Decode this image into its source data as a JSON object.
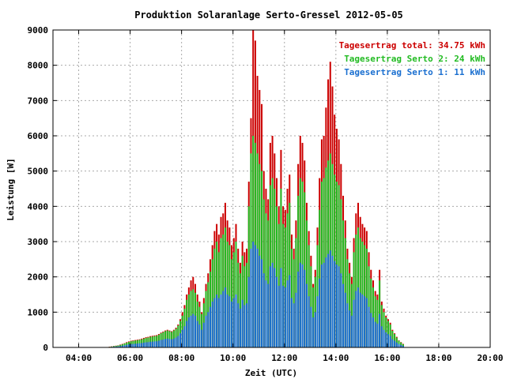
{
  "chart_data": {
    "type": "bar",
    "title": "Produktion Solaranlage Serto-Gressel 2012-05-05",
    "xlabel": "Zeit (UTC)",
    "ylabel": "Leistung [W]",
    "xlim_hours": [
      3,
      20
    ],
    "ylim": [
      0,
      9000
    ],
    "grid": true,
    "legend_position": "top-right",
    "x_ticks": [
      {
        "hour": 4,
        "label": "04:00"
      },
      {
        "hour": 6,
        "label": "06:00"
      },
      {
        "hour": 8,
        "label": "08:00"
      },
      {
        "hour": 10,
        "label": "10:00"
      },
      {
        "hour": 12,
        "label": "12:00"
      },
      {
        "hour": 14,
        "label": "14:00"
      },
      {
        "hour": 16,
        "label": "16:00"
      },
      {
        "hour": 18,
        "label": "18:00"
      },
      {
        "hour": 20,
        "label": "20:00"
      }
    ],
    "y_ticks": [
      0,
      1000,
      2000,
      3000,
      4000,
      5000,
      6000,
      7000,
      8000,
      9000
    ],
    "legend": [
      {
        "label": "Tagesertrag total: 34.75 kWh",
        "color": "#cc0000"
      },
      {
        "label": "Tagesertrag Serto 2: 24 kWh",
        "color": "#22bb22"
      },
      {
        "label": "Tagesertrag Serto 1: 11 kWh",
        "color": "#1a6fd0"
      }
    ],
    "series": [
      {
        "name": "Tagesertrag total",
        "color": "#cc0000",
        "interval_hours": 0.08333,
        "x_start_hour": 5.2,
        "values": [
          20,
          30,
          40,
          50,
          60,
          80,
          100,
          120,
          150,
          170,
          190,
          200,
          210,
          220,
          230,
          250,
          270,
          290,
          300,
          320,
          330,
          340,
          350,
          380,
          420,
          450,
          480,
          500,
          480,
          460,
          500,
          560,
          650,
          800,
          1000,
          1200,
          1500,
          1700,
          1900,
          2000,
          1800,
          1500,
          1300,
          1000,
          1400,
          1800,
          2100,
          2500,
          2900,
          3300,
          3500,
          3200,
          3700,
          3800,
          4100,
          3600,
          3400,
          2900,
          3100,
          3500,
          2800,
          2400,
          3000,
          2700,
          2800,
          4700,
          6500,
          9000,
          8700,
          7700,
          7300,
          6900,
          5000,
          4500,
          4200,
          5800,
          6000,
          5500,
          4800,
          4000,
          5600,
          4000,
          3900,
          4500,
          4900,
          3200,
          2800,
          3600,
          5200,
          6000,
          5800,
          5300,
          4100,
          3300,
          2600,
          1800,
          2200,
          3400,
          4800,
          5900,
          6000,
          6800,
          7600,
          8100,
          7400,
          6600,
          6200,
          5900,
          5200,
          4300,
          3600,
          2800,
          2400,
          2000,
          3100,
          3800,
          4100,
          3700,
          3500,
          3400,
          3300,
          2700,
          2200,
          1900,
          1600,
          1500,
          2200,
          1300,
          1100,
          900,
          800,
          700,
          500,
          400,
          300,
          200,
          150,
          100
        ]
      },
      {
        "name": "Tagesertrag Serto 2",
        "color": "#22bb22",
        "interval_hours": 0.08333,
        "x_start_hour": 5.2,
        "values": [
          15,
          25,
          35,
          45,
          55,
          70,
          90,
          110,
          135,
          155,
          175,
          185,
          195,
          205,
          215,
          230,
          250,
          270,
          280,
          300,
          310,
          320,
          330,
          360,
          400,
          430,
          460,
          480,
          460,
          440,
          480,
          530,
          620,
          750,
          900,
          1100,
          1350,
          1500,
          1600,
          1650,
          1550,
          1300,
          1150,
          950,
          1250,
          1600,
          1850,
          2150,
          2500,
          2800,
          3000,
          2700,
          3100,
          3200,
          3400,
          3000,
          2900,
          2500,
          2700,
          3000,
          2400,
          2100,
          2600,
          2300,
          2400,
          4000,
          5500,
          6000,
          5800,
          5500,
          5200,
          5000,
          4200,
          3800,
          3600,
          4600,
          4800,
          4500,
          4000,
          3500,
          4500,
          3500,
          3400,
          3800,
          4100,
          2800,
          2500,
          3100,
          4300,
          4800,
          4700,
          4400,
          3600,
          2900,
          2300,
          1700,
          2000,
          2900,
          3900,
          4700,
          4800,
          5100,
          5300,
          5500,
          5200,
          4900,
          4700,
          4600,
          4200,
          3600,
          3100,
          2500,
          2100,
          1800,
          2700,
          3200,
          3400,
          3100,
          3000,
          2900,
          2800,
          2300,
          1950,
          1700,
          1450,
          1350,
          1900,
          1200,
          1000,
          850,
          750,
          650,
          470,
          380,
          280,
          190,
          140,
          90
        ]
      },
      {
        "name": "Tagesertrag Serto 1",
        "color": "#1a6fd0",
        "interval_hours": 0.08333,
        "x_start_hour": 5.2,
        "values": [
          10,
          15,
          20,
          25,
          30,
          40,
          50,
          60,
          75,
          85,
          95,
          100,
          105,
          110,
          115,
          125,
          135,
          145,
          150,
          160,
          165,
          170,
          175,
          190,
          210,
          225,
          240,
          250,
          240,
          230,
          250,
          280,
          325,
          400,
          500,
          600,
          750,
          850,
          900,
          950,
          900,
          750,
          650,
          500,
          700,
          900,
          1000,
          1150,
          1300,
          1400,
          1500,
          1400,
          1500,
          1600,
          1700,
          1500,
          1450,
          1300,
          1400,
          1500,
          1250,
          1100,
          1350,
          1200,
          1250,
          2000,
          2800,
          3000,
          2900,
          2800,
          2600,
          2500,
          2100,
          1900,
          1800,
          2300,
          2400,
          2250,
          2000,
          1750,
          2250,
          1750,
          1700,
          1900,
          2050,
          1400,
          1250,
          1550,
          2150,
          2400,
          2350,
          2200,
          1800,
          1450,
          1150,
          850,
          1000,
          1450,
          1950,
          2350,
          2400,
          2550,
          2650,
          2750,
          2600,
          2450,
          2350,
          2300,
          2100,
          1800,
          1550,
          1250,
          1050,
          900,
          1350,
          1600,
          1700,
          1550,
          1500,
          1450,
          1400,
          1150,
          975,
          850,
          725,
          675,
          950,
          600,
          500,
          425,
          375,
          325,
          235,
          190,
          140,
          95,
          70,
          45
        ]
      }
    ]
  }
}
